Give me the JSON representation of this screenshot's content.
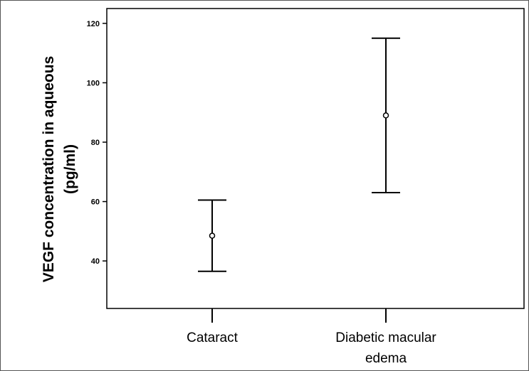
{
  "chart_data": {
    "type": "errorbar",
    "ylabel_lines": [
      "VEGF concentration in aqueous",
      "(pg/ml)"
    ],
    "categories": [
      {
        "label_lines": [
          "Cataract"
        ],
        "mean": 48.5,
        "lower": 36.5,
        "upper": 60.5
      },
      {
        "label_lines": [
          "Diabetic macular",
          "edema"
        ],
        "mean": 89,
        "lower": 63,
        "upper": 115
      }
    ],
    "yticks": [
      40,
      60,
      80,
      100,
      120
    ],
    "ylim": [
      24,
      125
    ],
    "grid": false,
    "colors": {
      "line": "#000000",
      "marker_fill": "#ffffff"
    }
  }
}
